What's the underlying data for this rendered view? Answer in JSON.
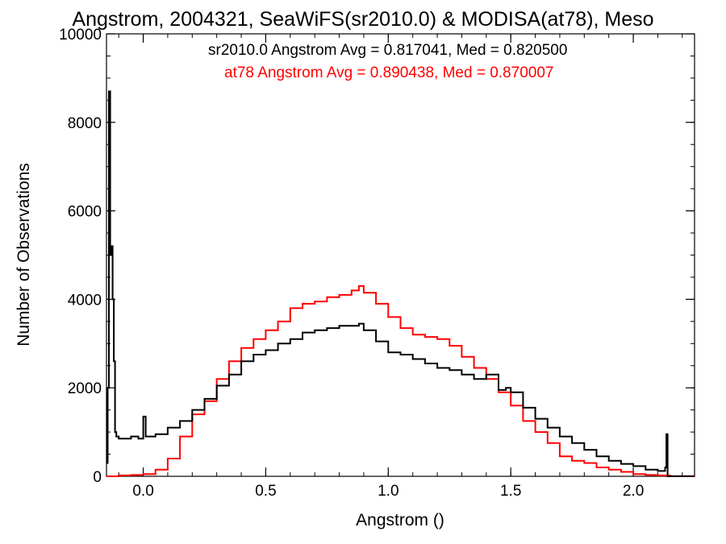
{
  "chart_data": {
    "type": "line",
    "title": "Angstrom, 2004321, SeaWiFS(sr2010.0) & MODISA(at78), Meso",
    "xlabel": "Angstrom ()",
    "ylabel": "Number of Observations",
    "xlim": [
      -0.15,
      2.25
    ],
    "ylim": [
      0,
      10000
    ],
    "x_ticks": [
      0.0,
      0.5,
      1.0,
      1.5,
      2.0
    ],
    "x_tick_labels": [
      "0.0",
      "0.5",
      "1.0",
      "1.5",
      "2.0"
    ],
    "y_ticks": [
      0,
      2000,
      4000,
      6000,
      8000,
      10000
    ],
    "y_tick_labels": [
      "0",
      "2000",
      "4000",
      "6000",
      "8000",
      "10000"
    ],
    "grid": false,
    "legend_placement": "top-right",
    "annotations": [
      {
        "text": "sr2010.0 Angstrom Avg = 0.817041, Med = 0.820500",
        "color": "#000000"
      },
      {
        "text": "at78 Angstrom Avg = 0.890438, Med = 0.870007",
        "color": "#ff0000"
      }
    ],
    "series": [
      {
        "color": "#000000",
        "x": [
          -0.15,
          -0.145,
          -0.14,
          -0.135,
          -0.13,
          -0.125,
          -0.12,
          -0.115,
          -0.11,
          -0.1,
          -0.08,
          -0.05,
          -0.02,
          0.0,
          0.01,
          0.05,
          0.1,
          0.15,
          0.2,
          0.25,
          0.3,
          0.35,
          0.4,
          0.45,
          0.5,
          0.55,
          0.6,
          0.65,
          0.7,
          0.75,
          0.8,
          0.85,
          0.88,
          0.9,
          0.95,
          1.0,
          1.05,
          1.1,
          1.15,
          1.2,
          1.25,
          1.3,
          1.35,
          1.4,
          1.45,
          1.48,
          1.5,
          1.55,
          1.6,
          1.65,
          1.7,
          1.75,
          1.8,
          1.85,
          1.9,
          1.95,
          2.0,
          2.05,
          2.1,
          2.13,
          2.135,
          2.14,
          2.25
        ],
        "y": [
          300,
          2000,
          8700,
          5000,
          5200,
          4000,
          2600,
          1000,
          900,
          850,
          850,
          900,
          850,
          1350,
          900,
          950,
          1100,
          1250,
          1500,
          1750,
          2050,
          2300,
          2600,
          2750,
          2850,
          3000,
          3100,
          3250,
          3300,
          3350,
          3400,
          3400,
          3450,
          3300,
          3050,
          2800,
          2750,
          2650,
          2550,
          2450,
          2400,
          2300,
          2200,
          2300,
          1950,
          2000,
          1900,
          1550,
          1300,
          1100,
          900,
          750,
          600,
          450,
          350,
          280,
          230,
          150,
          120,
          200,
          950,
          0,
          0
        ]
      },
      {
        "color": "#ff0000",
        "x": [
          -0.15,
          -0.1,
          -0.05,
          0.0,
          0.05,
          0.1,
          0.15,
          0.2,
          0.25,
          0.3,
          0.35,
          0.4,
          0.45,
          0.5,
          0.55,
          0.6,
          0.65,
          0.7,
          0.75,
          0.8,
          0.85,
          0.88,
          0.9,
          0.95,
          1.0,
          1.05,
          1.1,
          1.15,
          1.2,
          1.25,
          1.3,
          1.35,
          1.4,
          1.45,
          1.5,
          1.55,
          1.6,
          1.65,
          1.7,
          1.75,
          1.8,
          1.85,
          1.9,
          1.95,
          2.0,
          2.05,
          2.1,
          2.15,
          2.25
        ],
        "y": [
          0,
          20,
          30,
          50,
          150,
          400,
          900,
          1400,
          1700,
          2200,
          2600,
          2900,
          3100,
          3300,
          3500,
          3800,
          3900,
          3950,
          4050,
          4100,
          4200,
          4300,
          4150,
          3900,
          3600,
          3350,
          3200,
          3150,
          3100,
          2950,
          2700,
          2450,
          2200,
          1900,
          1600,
          1250,
          1000,
          750,
          450,
          350,
          300,
          200,
          150,
          100,
          50,
          30,
          20,
          5,
          0
        ]
      }
    ]
  }
}
